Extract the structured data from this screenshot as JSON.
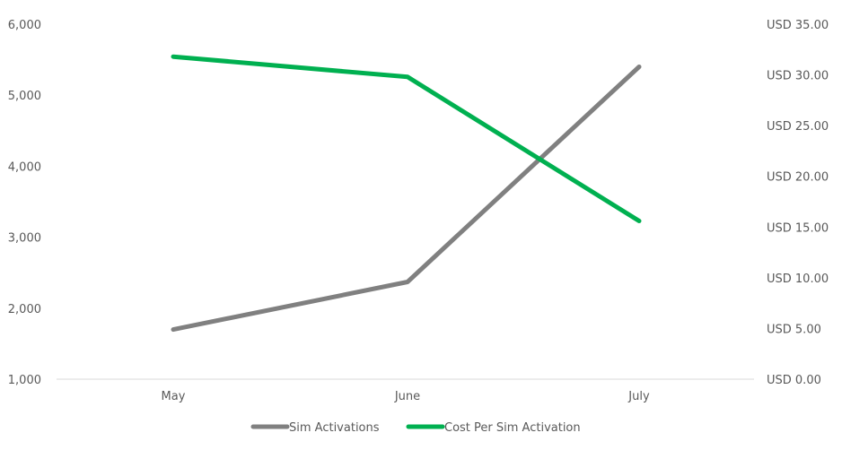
{
  "chart_data": {
    "type": "line",
    "categories": [
      "May",
      "June",
      "July"
    ],
    "y_left": {
      "ticks": [
        1000,
        2000,
        3000,
        4000,
        5000,
        6000
      ],
      "tick_labels": [
        "1,000",
        "2,000",
        "3,000",
        "4,000",
        "5,000",
        "6,000"
      ],
      "ylim": [
        1000,
        6000
      ]
    },
    "y_right": {
      "ticks": [
        0,
        5,
        10,
        15,
        20,
        25,
        30,
        35
      ],
      "tick_labels": [
        "USD 0.00",
        "USD 5.00",
        "USD 10.00",
        "USD 15.00",
        "USD 20.00",
        "USD 25.00",
        "USD 30.00",
        "USD 35.00"
      ],
      "ylim": [
        0,
        35
      ]
    },
    "series": [
      {
        "name": "Sim Activations",
        "axis": "left",
        "color": "#808080",
        "values": [
          1700,
          2370,
          5400
        ]
      },
      {
        "name": "Cost Per Sim Activation",
        "axis": "right",
        "color": "#00B050",
        "values": [
          31.8,
          29.8,
          15.6
        ]
      }
    ],
    "grid": false,
    "legend_position": "bottom"
  }
}
